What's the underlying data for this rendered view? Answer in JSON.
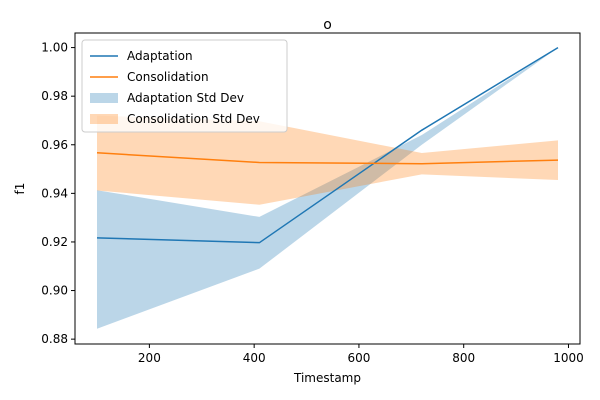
{
  "chart_data": {
    "type": "line",
    "title": "o",
    "xlabel": "Timestamp",
    "ylabel": "f1",
    "xlim": [
      58,
      1022
    ],
    "ylim": [
      0.878,
      1.006
    ],
    "xticks": [
      200,
      400,
      600,
      800,
      1000
    ],
    "yticks": [
      0.88,
      0.9,
      0.92,
      0.94,
      0.96,
      0.98,
      1.0
    ],
    "ytick_labels": [
      "0.88",
      "0.90",
      "0.92",
      "0.94",
      "0.96",
      "0.98",
      "1.00"
    ],
    "legend_position": "upper-left",
    "grid": false,
    "x": [
      100,
      410,
      720,
      980
    ],
    "series": [
      {
        "name": "Adaptation",
        "color": "#1f77b4",
        "values": [
          0.9217,
          0.9197,
          0.966,
          1.0
        ],
        "lower": [
          0.8843,
          0.909,
          0.96,
          1.0
        ],
        "upper": [
          0.9413,
          0.9303,
          0.964,
          1.0
        ],
        "band_name": "Adaptation Std Dev",
        "band_color": "#1f77b4",
        "band_opacity": 0.3
      },
      {
        "name": "Consolidation",
        "color": "#ff7f0e",
        "values": [
          0.9567,
          0.9527,
          0.9522,
          0.9537
        ],
        "lower": [
          0.9412,
          0.9353,
          0.9478,
          0.9455
        ],
        "upper": [
          0.972,
          0.9697,
          0.9566,
          0.9618
        ],
        "band_name": "Consolidation Std Dev",
        "band_color": "#ff7f0e",
        "band_opacity": 0.3
      }
    ]
  }
}
